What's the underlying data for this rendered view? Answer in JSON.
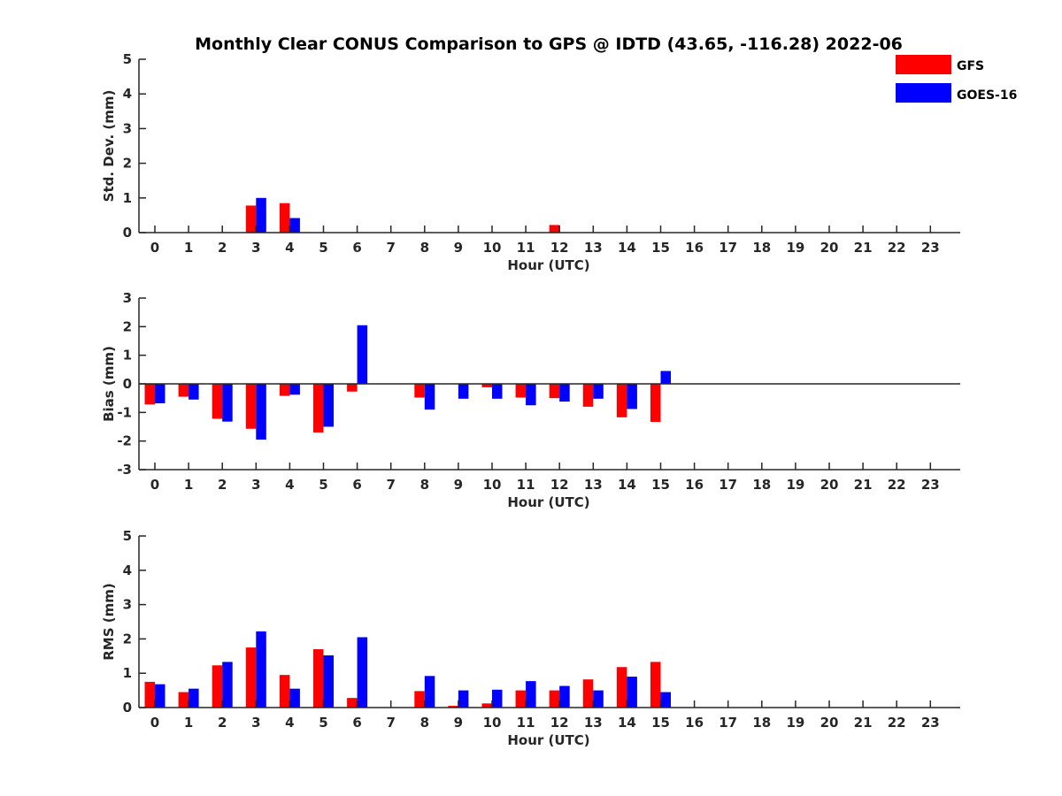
{
  "figure": {
    "title": "Monthly Clear CONUS Comparison to GPS @ IDTD (43.65, -116.28) 2022-06"
  },
  "legend": [
    {
      "label": "GFS",
      "color": "#ff0000"
    },
    {
      "label": "GOES-16",
      "color": "#0000ff"
    }
  ],
  "chart_data": [
    {
      "type": "bar",
      "ylabel": "Std. Dev. (mm)",
      "xlabel": "Hour (UTC)",
      "ylim": [
        0,
        5
      ],
      "yticks": [
        0,
        1,
        2,
        3,
        4,
        5
      ],
      "categories": [
        0,
        1,
        2,
        3,
        4,
        5,
        6,
        7,
        8,
        9,
        10,
        11,
        12,
        13,
        14,
        15,
        16,
        17,
        18,
        19,
        20,
        21,
        22,
        23
      ],
      "series": [
        {
          "name": "GFS",
          "color": "#ff0000",
          "values": [
            null,
            null,
            null,
            0.78,
            0.85,
            null,
            null,
            null,
            null,
            null,
            null,
            null,
            0.22,
            null,
            null,
            null,
            null,
            null,
            null,
            null,
            null,
            null,
            null,
            null
          ]
        },
        {
          "name": "GOES-16",
          "color": "#0000ff",
          "values": [
            null,
            null,
            null,
            1.0,
            0.42,
            null,
            null,
            null,
            null,
            null,
            null,
            null,
            null,
            null,
            null,
            null,
            null,
            null,
            null,
            null,
            null,
            null,
            null,
            null
          ]
        }
      ]
    },
    {
      "type": "bar",
      "ylabel": "Bias (mm)",
      "xlabel": "Hour (UTC)",
      "ylim": [
        -3,
        3
      ],
      "yticks": [
        -3,
        -2,
        -1,
        0,
        1,
        2,
        3
      ],
      "categories": [
        0,
        1,
        2,
        3,
        4,
        5,
        6,
        7,
        8,
        9,
        10,
        11,
        12,
        13,
        14,
        15,
        16,
        17,
        18,
        19,
        20,
        21,
        22,
        23
      ],
      "series": [
        {
          "name": "GFS",
          "color": "#ff0000",
          "values": [
            -0.72,
            -0.45,
            -1.22,
            -1.57,
            -0.42,
            -1.7,
            -0.27,
            null,
            -0.48,
            null,
            -0.12,
            -0.48,
            -0.5,
            -0.8,
            -1.17,
            -1.33,
            null,
            null,
            null,
            null,
            null,
            null,
            null,
            null
          ]
        },
        {
          "name": "GOES-16",
          "color": "#0000ff",
          "values": [
            -0.68,
            -0.55,
            -1.32,
            -1.95,
            -0.38,
            -1.5,
            2.05,
            null,
            -0.9,
            -0.52,
            -0.52,
            -0.75,
            -0.62,
            -0.52,
            -0.88,
            0.45,
            null,
            null,
            null,
            null,
            null,
            null,
            null,
            null
          ]
        }
      ]
    },
    {
      "type": "bar",
      "ylabel": "RMS (mm)",
      "xlabel": "Hour (UTC)",
      "ylim": [
        0,
        5
      ],
      "yticks": [
        0,
        1,
        2,
        3,
        4,
        5
      ],
      "categories": [
        0,
        1,
        2,
        3,
        4,
        5,
        6,
        7,
        8,
        9,
        10,
        11,
        12,
        13,
        14,
        15,
        16,
        17,
        18,
        19,
        20,
        21,
        22,
        23
      ],
      "series": [
        {
          "name": "GFS",
          "color": "#ff0000",
          "values": [
            0.75,
            0.45,
            1.23,
            1.75,
            0.95,
            1.7,
            0.28,
            null,
            0.48,
            0.05,
            0.12,
            0.5,
            0.5,
            0.82,
            1.18,
            1.33,
            null,
            null,
            null,
            null,
            null,
            null,
            null,
            null
          ]
        },
        {
          "name": "GOES-16",
          "color": "#0000ff",
          "values": [
            0.68,
            0.55,
            1.33,
            2.22,
            0.55,
            1.52,
            2.05,
            null,
            0.92,
            0.5,
            0.52,
            0.77,
            0.63,
            0.5,
            0.9,
            0.45,
            null,
            null,
            null,
            null,
            null,
            null,
            null,
            null
          ]
        }
      ]
    }
  ]
}
